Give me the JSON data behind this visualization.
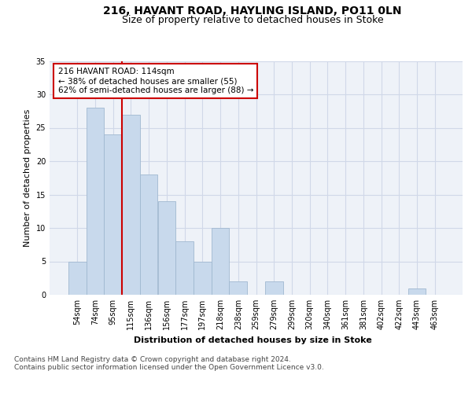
{
  "title_line1": "216, HAVANT ROAD, HAYLING ISLAND, PO11 0LN",
  "title_line2": "Size of property relative to detached houses in Stoke",
  "xlabel": "Distribution of detached houses by size in Stoke",
  "ylabel": "Number of detached properties",
  "categories": [
    "54sqm",
    "74sqm",
    "95sqm",
    "115sqm",
    "136sqm",
    "156sqm",
    "177sqm",
    "197sqm",
    "218sqm",
    "238sqm",
    "259sqm",
    "279sqm",
    "299sqm",
    "320sqm",
    "340sqm",
    "361sqm",
    "381sqm",
    "402sqm",
    "422sqm",
    "443sqm",
    "463sqm"
  ],
  "values": [
    5,
    28,
    24,
    27,
    18,
    14,
    8,
    5,
    10,
    2,
    0,
    2,
    0,
    0,
    0,
    0,
    0,
    0,
    0,
    1,
    0
  ],
  "bar_color": "#c8d9ec",
  "bar_edge_color": "#a0b8d0",
  "vline_x_index": 2.5,
  "vline_color": "#cc0000",
  "annotation_line1": "216 HAVANT ROAD: 114sqm",
  "annotation_line2": "← 38% of detached houses are smaller (55)",
  "annotation_line3": "62% of semi-detached houses are larger (88) →",
  "annotation_box_color": "#ffffff",
  "annotation_box_edge_color": "#cc0000",
  "ylim": [
    0,
    35
  ],
  "yticks": [
    0,
    5,
    10,
    15,
    20,
    25,
    30,
    35
  ],
  "grid_color": "#d0d8e8",
  "background_color": "#eef2f8",
  "footer_text": "Contains HM Land Registry data © Crown copyright and database right 2024.\nContains public sector information licensed under the Open Government Licence v3.0.",
  "title_fontsize": 10,
  "subtitle_fontsize": 9,
  "axis_label_fontsize": 8,
  "tick_fontsize": 7,
  "annotation_fontsize": 7.5,
  "footer_fontsize": 6.5
}
